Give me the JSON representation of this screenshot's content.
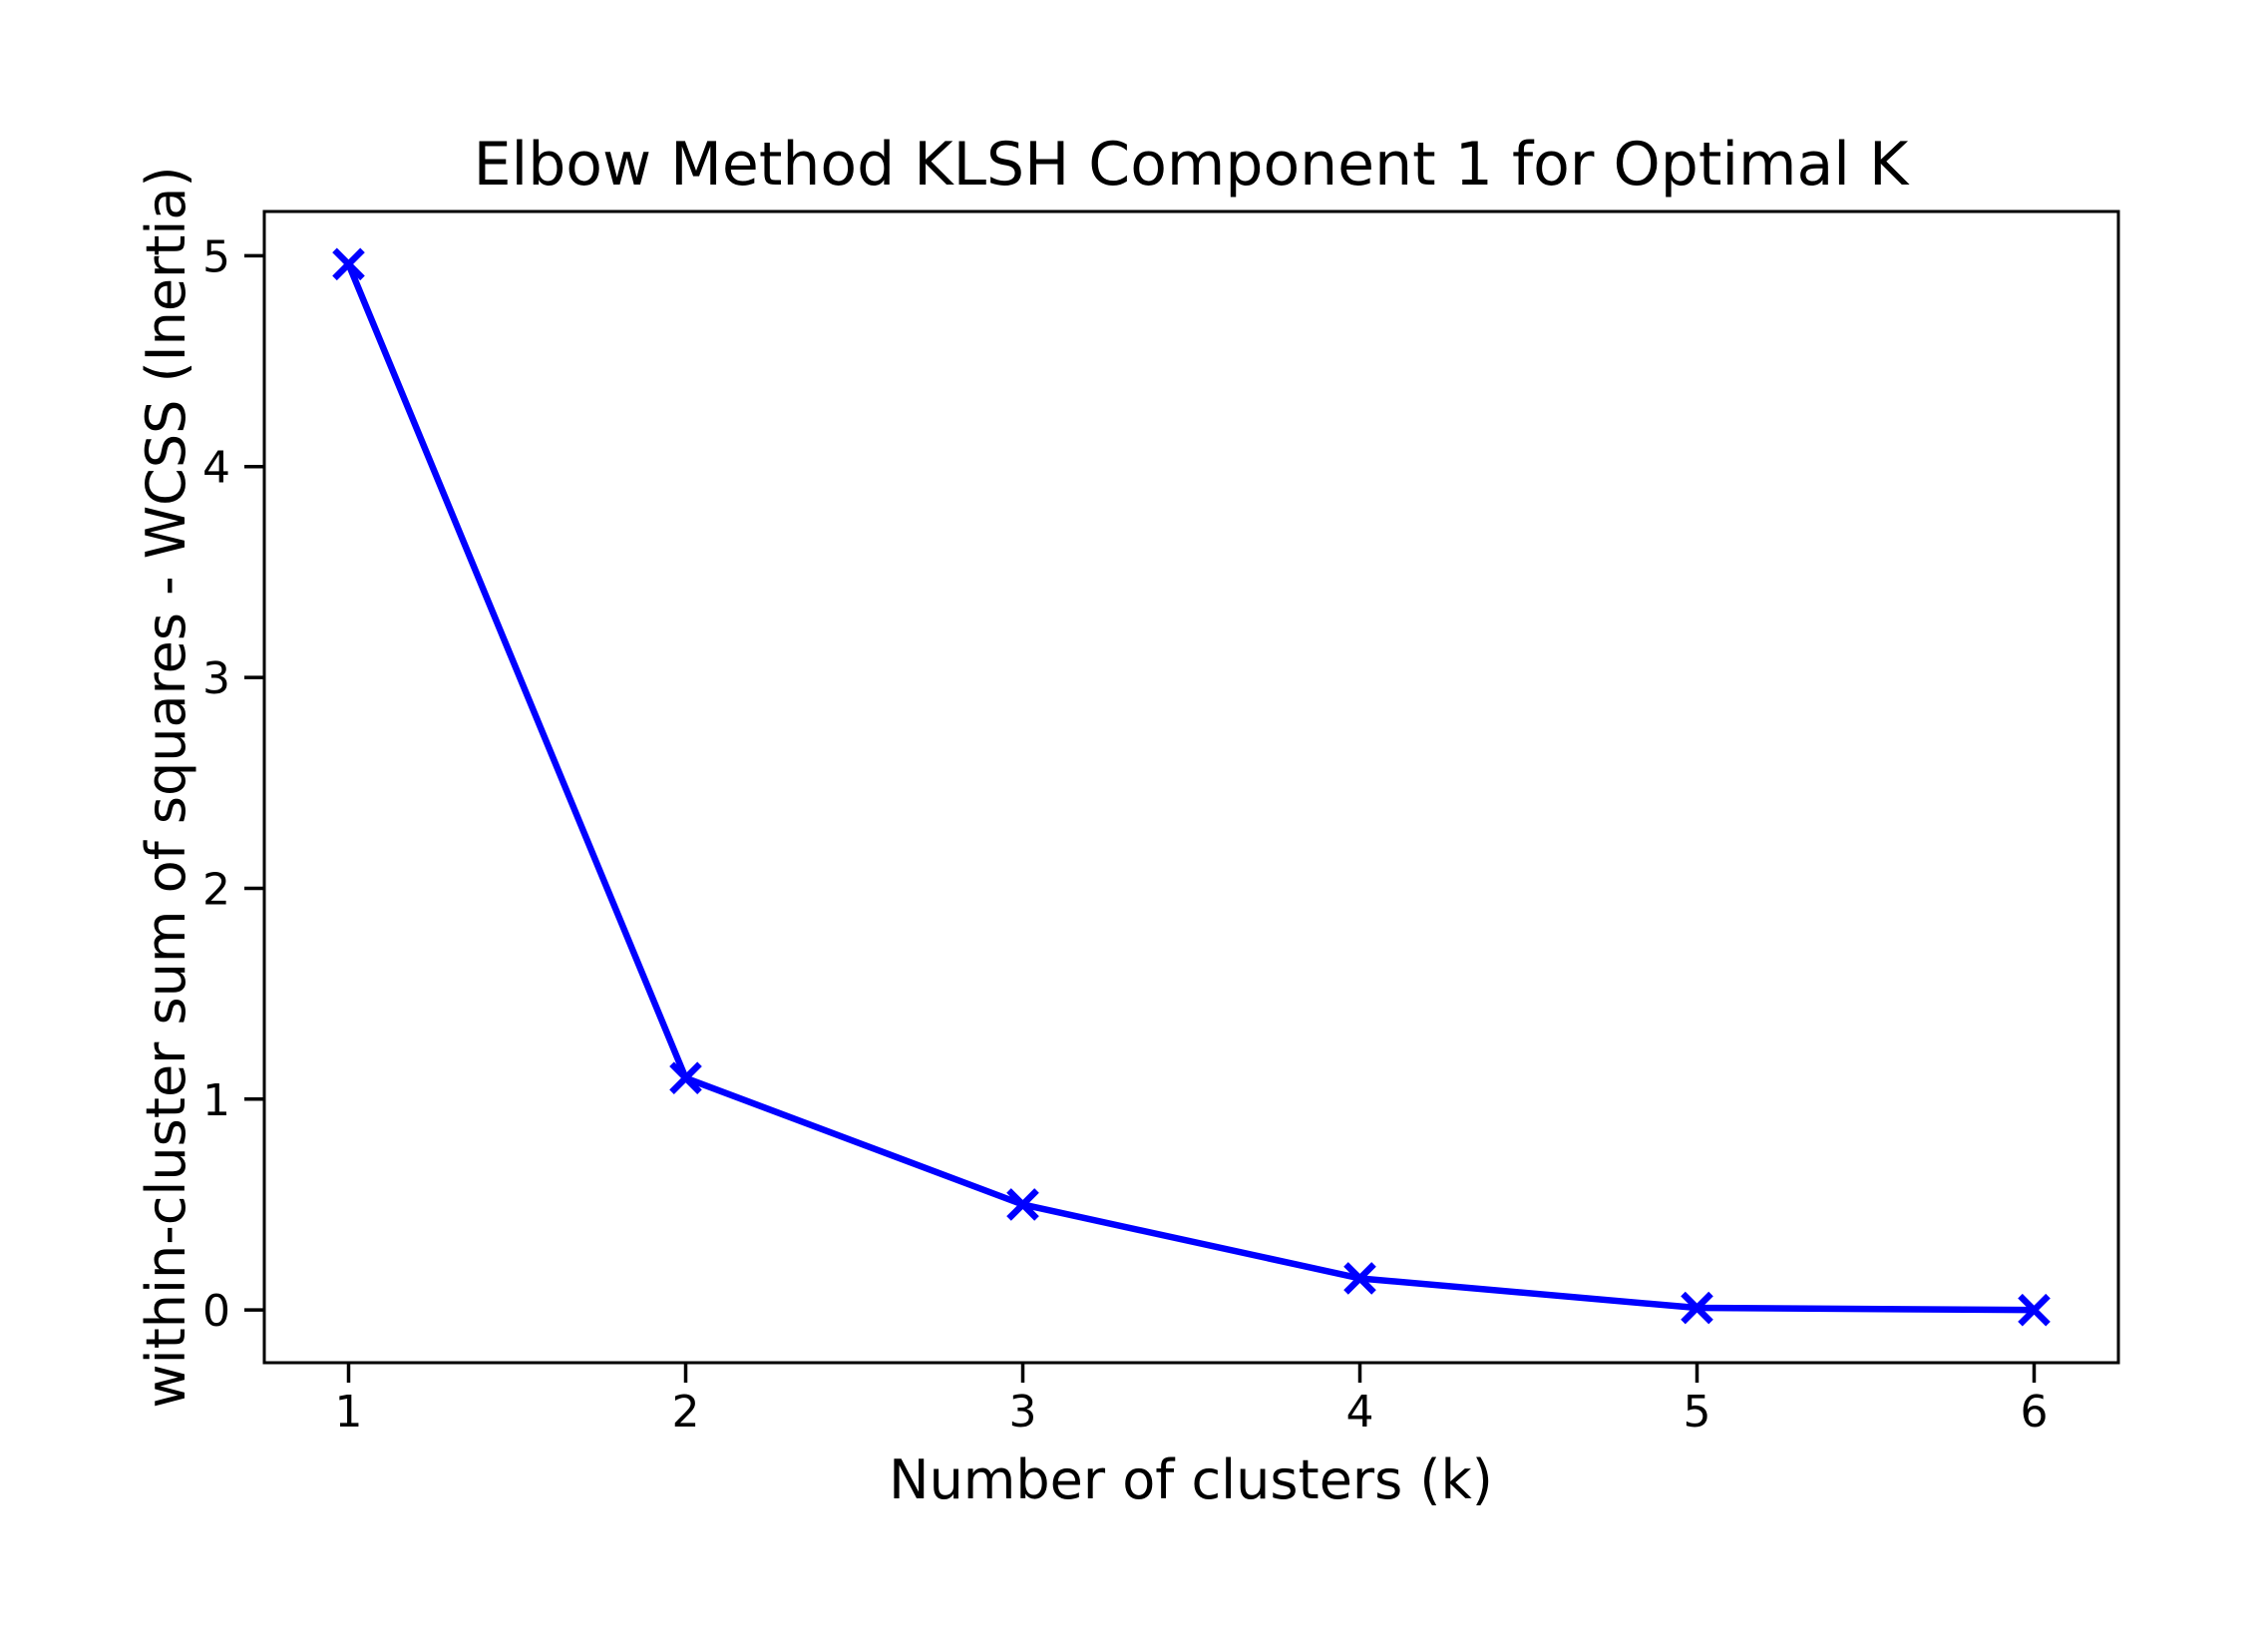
{
  "figure": {
    "background_color": "#ffffff",
    "text_color": "#000000"
  },
  "chart_data": {
    "type": "line",
    "title": "Elbow Method KLSH Component 1 for Optimal K",
    "xlabel": "Number of clusters (k)",
    "ylabel": "within-cluster sum of squares - WCSS (Inertia)",
    "x": [
      1,
      2,
      3,
      4,
      5,
      6
    ],
    "values": [
      4.96,
      1.1,
      0.5,
      0.15,
      0.01,
      0.0
    ],
    "xticks": [
      "1",
      "2",
      "3",
      "4",
      "5",
      "6"
    ],
    "yticks": [
      "0",
      "1",
      "2",
      "3",
      "4",
      "5"
    ],
    "xtick_values": [
      1,
      2,
      3,
      4,
      5,
      6
    ],
    "ytick_values": [
      0,
      1,
      2,
      3,
      4,
      5
    ],
    "xlim": [
      0.75,
      6.25
    ],
    "ylim": [
      -0.25,
      5.21
    ],
    "line_color": "#0000ff",
    "marker": "x",
    "grid": false,
    "legend_position": "none"
  }
}
